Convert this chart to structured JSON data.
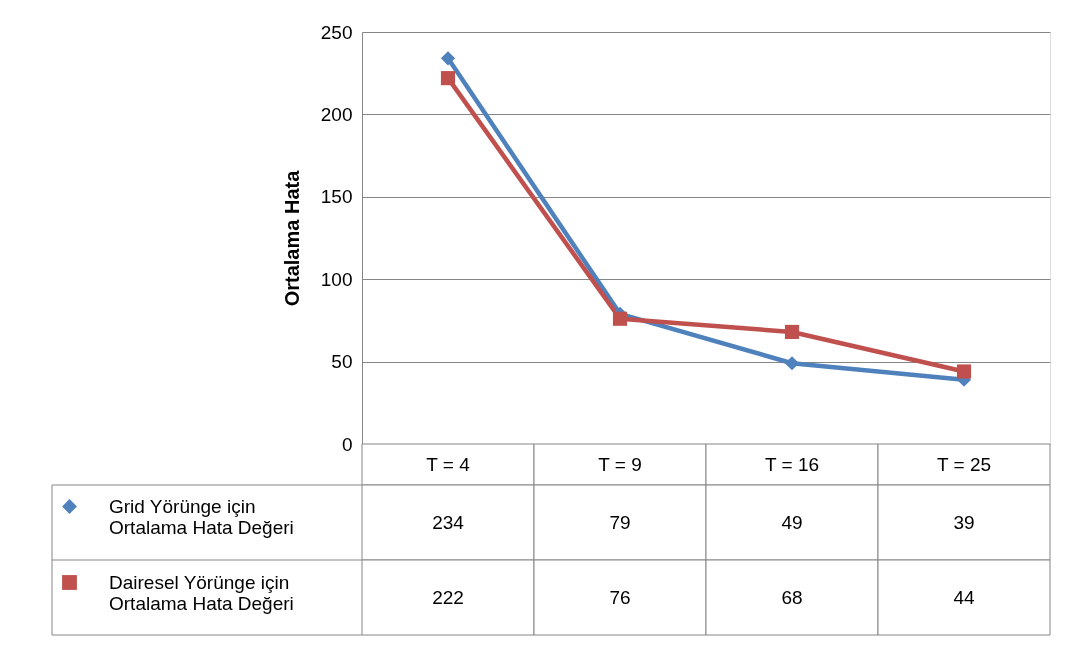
{
  "chart_data": {
    "type": "line",
    "ylabel": "Ortalama Hata",
    "categories": [
      "T = 4",
      "T = 9",
      "T = 16",
      "T = 25"
    ],
    "series": [
      {
        "name": "Grid Yörünge için Ortalama Hata Değeri",
        "color": "#4f81bd",
        "marker": "diamond",
        "values": [
          234,
          79,
          49,
          39
        ]
      },
      {
        "name": "Dairesel Yörünge için Ortalama Hata Değeri",
        "color": "#c0504d",
        "marker": "square",
        "values": [
          222,
          76,
          68,
          44
        ]
      }
    ],
    "ylim": [
      0,
      250
    ],
    "yticks": [
      0,
      50,
      100,
      150,
      200,
      250
    ],
    "grid": "y",
    "legend": "bottom left",
    "data_labels": true
  }
}
